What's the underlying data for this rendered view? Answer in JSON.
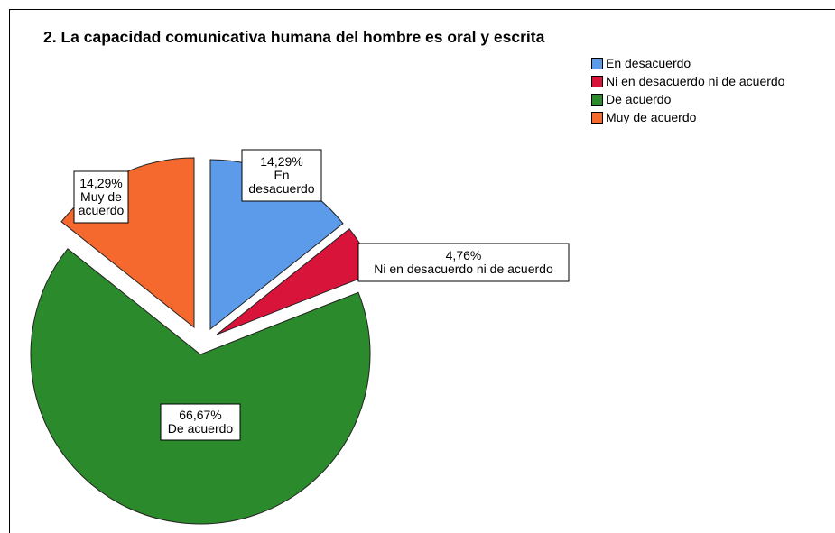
{
  "chart_data": {
    "type": "pie",
    "title": "2. La capacidad comunicativa humana del hombre es oral y escrita",
    "slices": [
      {
        "name": "En desacuerdo",
        "value": 14.29,
        "label": "14,29%",
        "color": "#5b9bea",
        "exploded": true
      },
      {
        "name": "Ni en desacuerdo ni de acuerdo",
        "value": 4.76,
        "label": "4,76%",
        "color": "#d9143b",
        "exploded": true
      },
      {
        "name": "De acuerdo",
        "value": 66.67,
        "label": "66,67%",
        "color": "#2b8a2b",
        "exploded": true
      },
      {
        "name": "Muy de acuerdo",
        "value": 14.29,
        "label": "14,29%",
        "color": "#f5692e",
        "exploded": true
      }
    ],
    "start_angle": "12 o'clock",
    "direction": "clockwise",
    "legend_position": "top-right"
  }
}
